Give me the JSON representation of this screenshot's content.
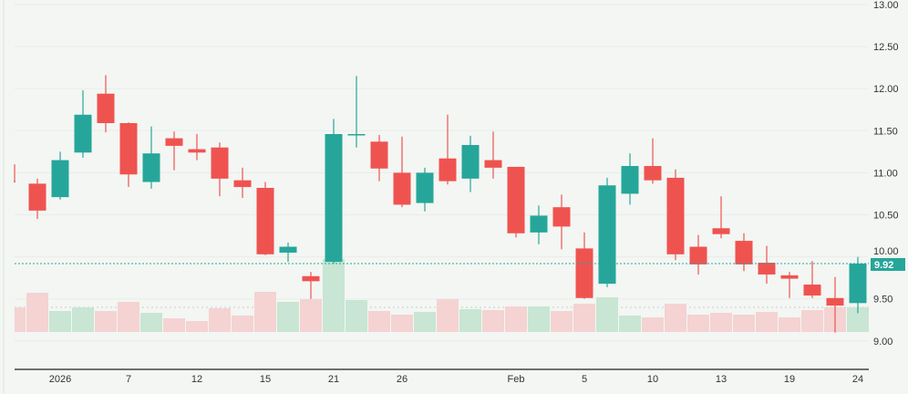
{
  "chart_data": {
    "type": "candlestick",
    "title": "",
    "y_axis": {
      "ticks": [
        "13.00",
        "12.50",
        "12.00",
        "11.50",
        "11.00",
        "10.50",
        "10.00",
        "9.50",
        "9.00"
      ],
      "range": [
        8.75,
        13.05
      ],
      "position": "right"
    },
    "x_axis": {
      "ticks": [
        {
          "label": "2026",
          "index": 2
        },
        {
          "label": "7",
          "index": 5
        },
        {
          "label": "12",
          "index": 8
        },
        {
          "label": "15",
          "index": 11
        },
        {
          "label": "21",
          "index": 14
        },
        {
          "label": "26",
          "index": 17
        },
        {
          "label": "Feb",
          "index": 22
        },
        {
          "label": "5",
          "index": 25
        },
        {
          "label": "10",
          "index": 28
        },
        {
          "label": "13",
          "index": 31
        },
        {
          "label": "19",
          "index": 34
        },
        {
          "label": "24",
          "index": 37
        }
      ]
    },
    "last_price": {
      "value": 9.92,
      "label": "9.92"
    },
    "grid": true,
    "colors": {
      "up": "#26a69a",
      "down": "#ef5350",
      "volume_up": "#c8e6d3",
      "volume_down": "#f4d3d2",
      "background": "#f3f6f3"
    },
    "ohlc": [
      [
        10.9,
        11.1,
        10.89,
        10.89
      ],
      [
        10.87,
        10.93,
        10.45,
        10.55
      ],
      [
        10.71,
        11.25,
        10.68,
        11.15
      ],
      [
        11.24,
        11.98,
        11.18,
        11.69
      ],
      [
        11.94,
        12.16,
        11.48,
        11.59
      ],
      [
        11.59,
        11.6,
        10.83,
        10.98
      ],
      [
        10.89,
        11.55,
        10.81,
        11.23
      ],
      [
        11.41,
        11.49,
        11.03,
        11.32
      ],
      [
        11.28,
        11.46,
        11.15,
        11.24
      ],
      [
        11.3,
        11.36,
        10.72,
        10.93
      ],
      [
        10.91,
        11.06,
        10.7,
        10.83
      ],
      [
        10.82,
        10.89,
        10.02,
        10.03
      ],
      [
        10.05,
        10.17,
        9.94,
        10.12
      ],
      [
        9.77,
        9.82,
        9.5,
        9.71
      ],
      [
        9.94,
        11.64,
        9.92,
        11.46
      ],
      [
        11.45,
        12.15,
        11.3,
        11.46
      ],
      [
        11.37,
        11.45,
        10.9,
        11.05
      ],
      [
        11.0,
        11.43,
        10.59,
        10.62
      ],
      [
        10.64,
        11.06,
        10.54,
        11.0
      ],
      [
        11.17,
        11.69,
        10.86,
        10.9
      ],
      [
        10.93,
        11.44,
        10.77,
        11.33
      ],
      [
        11.15,
        11.49,
        10.93,
        11.06
      ],
      [
        11.07,
        11.07,
        10.23,
        10.28
      ],
      [
        10.29,
        10.61,
        10.15,
        10.49
      ],
      [
        10.59,
        10.74,
        10.09,
        10.36
      ],
      [
        10.1,
        10.29,
        9.5,
        9.51
      ],
      [
        9.68,
        10.94,
        9.64,
        10.85
      ],
      [
        10.75,
        11.23,
        10.62,
        11.08
      ],
      [
        11.08,
        11.41,
        10.87,
        10.91
      ],
      [
        10.94,
        11.04,
        9.96,
        10.03
      ],
      [
        10.12,
        10.26,
        9.79,
        9.91
      ],
      [
        10.34,
        10.72,
        10.22,
        10.27
      ],
      [
        10.19,
        10.28,
        9.83,
        9.91
      ],
      [
        9.93,
        10.13,
        9.68,
        9.79
      ],
      [
        9.78,
        9.82,
        9.51,
        9.74
      ],
      [
        9.67,
        9.95,
        9.51,
        9.54
      ],
      [
        9.51,
        9.76,
        9.1,
        9.42
      ],
      [
        9.45,
        10.0,
        9.33,
        9.92
      ]
    ],
    "volume_relative": [
      27,
      43,
      23,
      27,
      23,
      33,
      21,
      15,
      12,
      26,
      18,
      44,
      33,
      36,
      80,
      35,
      23,
      19,
      22,
      36,
      25,
      24,
      28,
      28,
      23,
      31,
      38,
      18,
      16,
      31,
      19,
      21,
      19,
      22,
      16,
      24,
      27,
      27
    ]
  }
}
